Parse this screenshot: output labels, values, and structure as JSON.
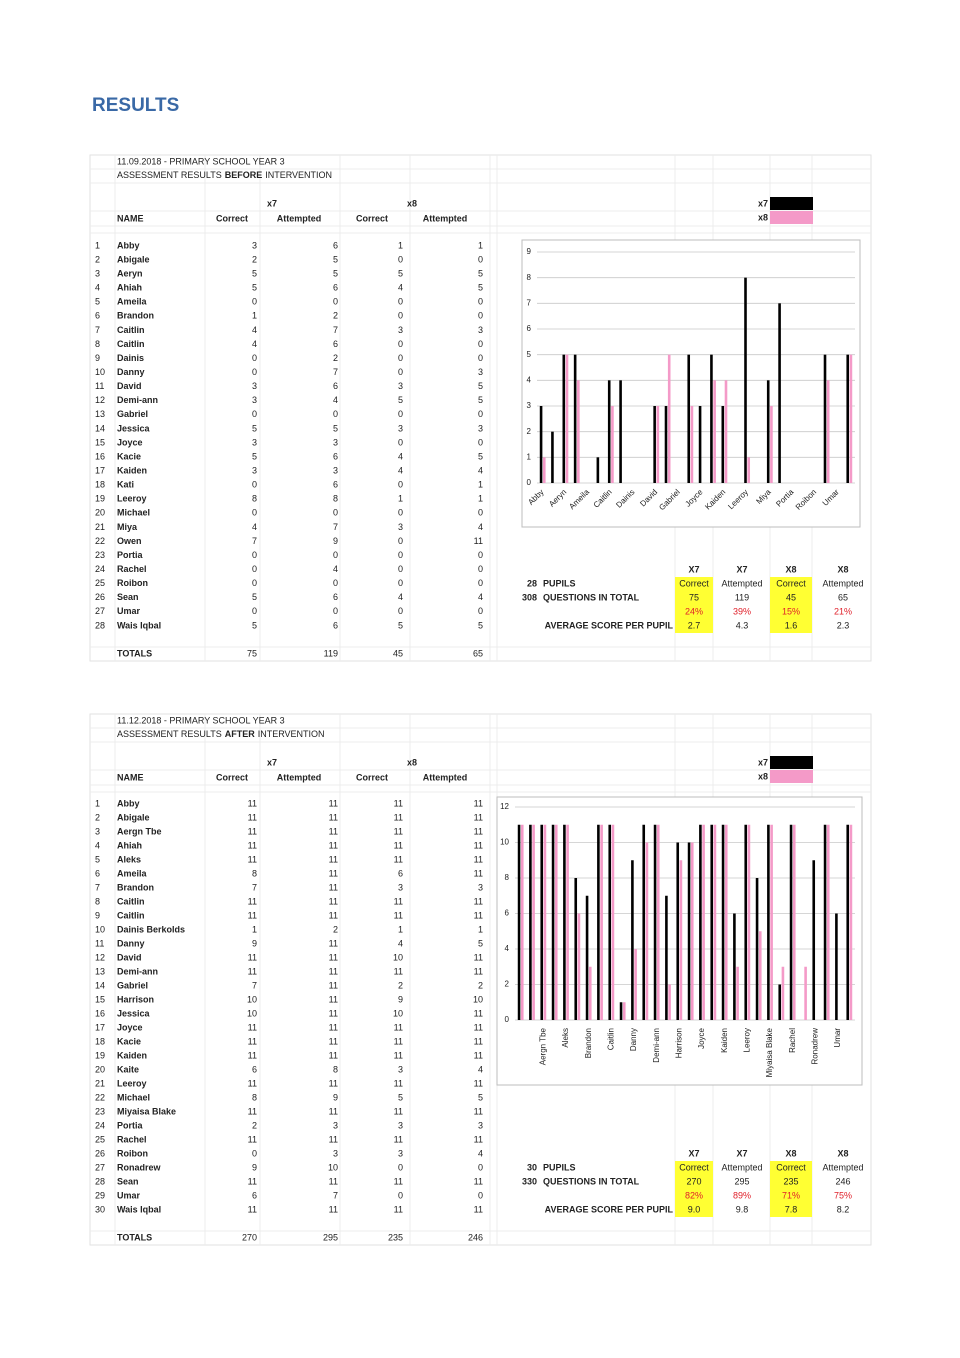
{
  "title": "RESULTS",
  "sections": [
    {
      "heading": "11.09.2018 - PRIMARY SCHOOL YEAR 3",
      "subheading": [
        "ASSESSMENT RESULTS",
        "BEFORE",
        "INTERVENTION"
      ],
      "groups": [
        "x7",
        "x8"
      ],
      "columns": [
        "NAME",
        "Correct",
        "Attempted",
        "Correct",
        "Attempted"
      ],
      "rows": [
        [
          1,
          "Abby",
          3,
          6,
          1,
          1
        ],
        [
          2,
          "Abigale",
          2,
          5,
          0,
          0
        ],
        [
          3,
          "Aeryn",
          5,
          5,
          5,
          5
        ],
        [
          4,
          "Ahiah",
          5,
          6,
          4,
          5
        ],
        [
          5,
          "Ameila",
          0,
          0,
          0,
          0
        ],
        [
          6,
          "Brandon",
          1,
          2,
          0,
          0
        ],
        [
          7,
          "Caitlin",
          4,
          7,
          3,
          3
        ],
        [
          8,
          "Caitlin",
          4,
          6,
          0,
          0
        ],
        [
          9,
          "Dainis",
          0,
          2,
          0,
          0
        ],
        [
          10,
          "Danny",
          0,
          7,
          0,
          3
        ],
        [
          11,
          "David",
          3,
          6,
          3,
          5
        ],
        [
          12,
          "Demi-ann",
          3,
          4,
          5,
          5
        ],
        [
          13,
          "Gabriel",
          0,
          0,
          0,
          0
        ],
        [
          14,
          "Jessica",
          5,
          5,
          3,
          3
        ],
        [
          15,
          "Joyce",
          3,
          3,
          0,
          0
        ],
        [
          16,
          "Kacie",
          5,
          6,
          4,
          5
        ],
        [
          17,
          "Kaiden",
          3,
          3,
          4,
          4
        ],
        [
          18,
          "Kati",
          0,
          6,
          0,
          1
        ],
        [
          19,
          "Leeroy",
          8,
          8,
          1,
          1
        ],
        [
          20,
          "Michael",
          0,
          0,
          0,
          0
        ],
        [
          21,
          "Miya",
          4,
          7,
          3,
          4
        ],
        [
          22,
          "Owen",
          7,
          9,
          0,
          11
        ],
        [
          23,
          "Portia",
          0,
          0,
          0,
          0
        ],
        [
          24,
          "Rachel",
          0,
          4,
          0,
          0
        ],
        [
          25,
          "Roibon",
          0,
          0,
          0,
          0
        ],
        [
          26,
          "Sean",
          5,
          6,
          4,
          4
        ],
        [
          27,
          "Umar",
          0,
          0,
          0,
          0
        ],
        [
          28,
          "Wais Iqbal",
          5,
          6,
          5,
          5
        ]
      ],
      "totals_label": "TOTALS",
      "totals": [
        75,
        119,
        45,
        65
      ],
      "chart": {
        "type": "bar",
        "categories": [
          "Abby",
          null,
          "Aeryn",
          null,
          "Ameila",
          null,
          "Caitlin",
          null,
          "Dainis",
          null,
          "David",
          null,
          "Gabriel",
          null,
          "Joyce",
          null,
          "Kaiden",
          null,
          "Leeroy",
          null,
          "Miya",
          null,
          "Portia",
          null,
          "Roibon",
          null,
          "Umar",
          null
        ],
        "series": [
          {
            "name": "x7",
            "color": "#000000",
            "values": [
              3,
              2,
              5,
              5,
              0,
              1,
              4,
              4,
              0,
              0,
              3,
              3,
              0,
              5,
              3,
              5,
              3,
              0,
              8,
              0,
              4,
              7,
              0,
              0,
              0,
              5,
              0,
              5
            ]
          },
          {
            "name": "x8",
            "color": "#f49ac8",
            "values": [
              1,
              0,
              5,
              4,
              0,
              0,
              3,
              0,
              0,
              0,
              3,
              5,
              0,
              3,
              0,
              4,
              4,
              0,
              1,
              0,
              3,
              0,
              0,
              0,
              0,
              4,
              0,
              5
            ]
          }
        ],
        "ylim": [
          0,
          9
        ],
        "yticks": [
          0,
          1,
          2,
          3,
          4,
          5,
          6,
          7,
          8,
          9
        ],
        "grid": true
      },
      "summary": {
        "headers": [
          "X7",
          "X7",
          "X8",
          "X8"
        ],
        "subheaders": [
          "Correct",
          "Attempted",
          "Correct",
          "Attempted"
        ],
        "pupils": 28,
        "pupils_label": "PUPILS",
        "questions": 308,
        "questions_label": "QUESTIONS IN TOTAL",
        "percentages": [
          "24%",
          "39%",
          "15%",
          "21%"
        ],
        "average_label": "AVERAGE SCORE PER PUPIL",
        "averages": [
          "2.7",
          "4.3",
          "1.6",
          "2.3"
        ]
      }
    },
    {
      "heading": "11.12.2018 - PRIMARY SCHOOL YEAR 3",
      "subheading": [
        "ASSESSMENT RESULTS",
        "AFTER",
        "INTERVENTION"
      ],
      "groups": [
        "x7",
        "x8"
      ],
      "columns": [
        "NAME",
        "Correct",
        "Attempted",
        "Correct",
        "Attempted"
      ],
      "rows": [
        [
          1,
          "Abby",
          11,
          11,
          11,
          11
        ],
        [
          2,
          "Abigale",
          11,
          11,
          11,
          11
        ],
        [
          3,
          "Aergn Tbe",
          11,
          11,
          11,
          11
        ],
        [
          4,
          "Ahiah",
          11,
          11,
          11,
          11
        ],
        [
          5,
          "Aleks",
          11,
          11,
          11,
          11
        ],
        [
          6,
          "Ameila",
          8,
          11,
          6,
          11
        ],
        [
          7,
          "Brandon",
          7,
          11,
          3,
          3
        ],
        [
          8,
          "Caitlin",
          11,
          11,
          11,
          11
        ],
        [
          9,
          "Caitlin",
          11,
          11,
          11,
          11
        ],
        [
          10,
          "Dainis Berkolds",
          1,
          2,
          1,
          1
        ],
        [
          11,
          "Danny",
          9,
          11,
          4,
          5
        ],
        [
          12,
          "David",
          11,
          11,
          10,
          11
        ],
        [
          13,
          "Demi-ann",
          11,
          11,
          11,
          11
        ],
        [
          14,
          "Gabriel",
          7,
          11,
          2,
          2
        ],
        [
          15,
          "Harrison",
          10,
          11,
          9,
          10
        ],
        [
          16,
          "Jessica",
          10,
          11,
          10,
          11
        ],
        [
          17,
          "Joyce",
          11,
          11,
          11,
          11
        ],
        [
          18,
          "Kacie",
          11,
          11,
          11,
          11
        ],
        [
          19,
          "Kaiden",
          11,
          11,
          11,
          11
        ],
        [
          20,
          "Kaite",
          6,
          8,
          3,
          4
        ],
        [
          21,
          "Leeroy",
          11,
          11,
          11,
          11
        ],
        [
          22,
          "Michael",
          8,
          9,
          5,
          5
        ],
        [
          23,
          "Miyaisa Blake",
          11,
          11,
          11,
          11
        ],
        [
          24,
          "Portia",
          2,
          3,
          3,
          3
        ],
        [
          25,
          "Rachel",
          11,
          11,
          11,
          11
        ],
        [
          26,
          "Roibon",
          0,
          3,
          3,
          4
        ],
        [
          27,
          "Ronadrew",
          9,
          10,
          0,
          0
        ],
        [
          28,
          "Sean",
          11,
          11,
          11,
          11
        ],
        [
          29,
          "Umar",
          6,
          7,
          0,
          0
        ],
        [
          30,
          "Wais Iqbal",
          11,
          11,
          11,
          11
        ]
      ],
      "totals_label": "TOTALS",
      "totals": [
        270,
        295,
        235,
        246
      ],
      "chart": {
        "type": "bar",
        "categories": [
          null,
          null,
          "Aergn Tbe",
          null,
          "Aleks",
          null,
          "Brandon",
          null,
          "Caitlin",
          null,
          "Danny",
          null,
          "Demi-ann",
          null,
          "Harrison",
          null,
          "Joyce",
          null,
          "Kaiden",
          null,
          "Leeroy",
          null,
          "Miyaisa Blake",
          null,
          "Rachel",
          null,
          "Ronadrew",
          null,
          "Umar",
          null
        ],
        "series": [
          {
            "name": "x7",
            "color": "#000000",
            "values": [
              11,
              11,
              11,
              11,
              11,
              8,
              7,
              11,
              11,
              1,
              9,
              11,
              11,
              7,
              10,
              10,
              11,
              11,
              11,
              6,
              11,
              8,
              11,
              2,
              11,
              0,
              9,
              11,
              6,
              11
            ]
          },
          {
            "name": "x8",
            "color": "#f49ac8",
            "values": [
              11,
              11,
              11,
              11,
              11,
              6,
              3,
              11,
              11,
              1,
              4,
              10,
              11,
              2,
              9,
              10,
              11,
              11,
              11,
              3,
              11,
              5,
              11,
              3,
              11,
              3,
              0,
              11,
              0,
              11
            ]
          }
        ],
        "ylim": [
          0,
          12
        ],
        "yticks": [
          0,
          2,
          4,
          6,
          8,
          10,
          12
        ],
        "grid": true
      },
      "summary": {
        "headers": [
          "X7",
          "X7",
          "X8",
          "X8"
        ],
        "subheaders": [
          "Correct",
          "Attempted",
          "Correct",
          "Attempted"
        ],
        "pupils": 30,
        "pupils_label": "PUPILS",
        "questions": 330,
        "questions_label": "QUESTIONS IN TOTAL",
        "percentages": [
          "82%",
          "89%",
          "71%",
          "75%"
        ],
        "average_label": "AVERAGE SCORE PER PUPIL",
        "averages": [
          "9.0",
          "9.8",
          "7.8",
          "8.2"
        ]
      }
    }
  ]
}
